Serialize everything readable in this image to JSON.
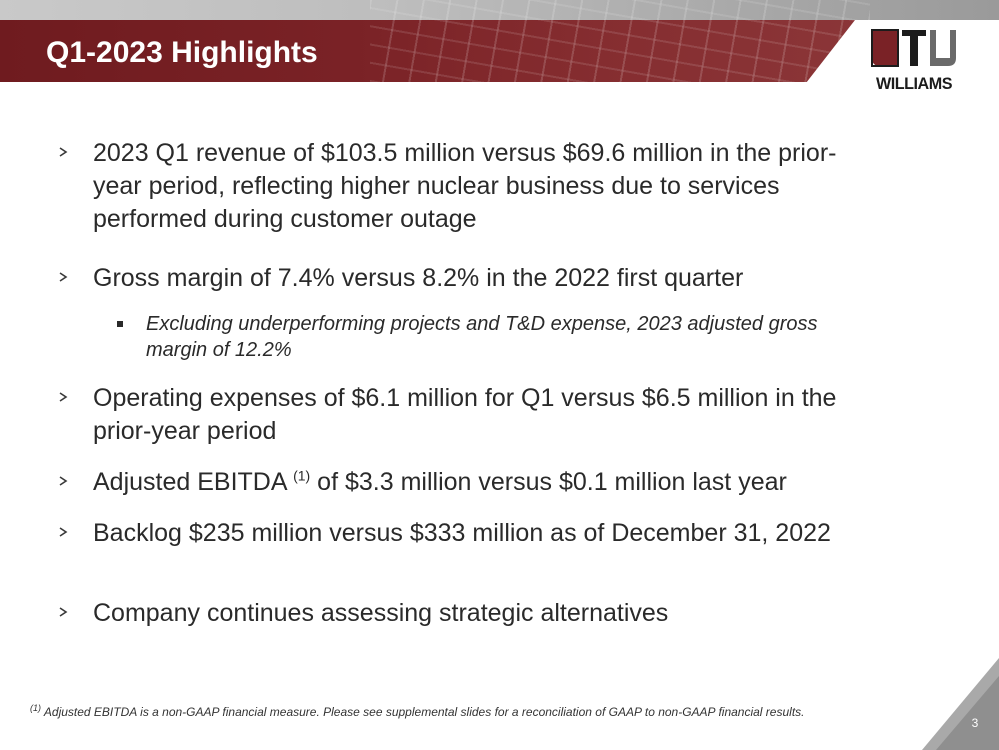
{
  "slide": {
    "title": "Q1-2023 Highlights",
    "page_number": "3"
  },
  "logo": {
    "text": "WILLIAMS",
    "color": "#1c1c1c"
  },
  "colors": {
    "banner_red": "#7a2226",
    "text": "#2a2a2a"
  },
  "bullets": [
    {
      "text": "2023 Q1 revenue of $103.5 million versus $69.6 million in the prior-year period, reflecting higher nuclear business due to services performed during customer outage"
    },
    {
      "text": "Gross margin of 7.4% versus 8.2% in the 2022 first quarter"
    },
    {
      "text": "Operating expenses of $6.1 million for Q1 versus $6.5 million in the prior-year period"
    },
    {
      "text_before": "Adjusted EBITDA",
      "superscript": "(1)",
      "text_after": " of $3.3 million versus $0.1 million last year"
    },
    {
      "text": "Backlog $235 million versus $333 million as of December 31, 2022"
    },
    {
      "text": "Company continues assessing strategic alternatives"
    }
  ],
  "sub_bullet": {
    "text": "Excluding underperforming projects and T&D expense, 2023 adjusted gross margin of 12.2%"
  },
  "footnote": {
    "marker": "(1)",
    "text": " Adjusted EBITDA is a non-GAAP financial measure. Please see supplemental slides for a reconciliation of GAAP to non-GAAP financial results."
  }
}
